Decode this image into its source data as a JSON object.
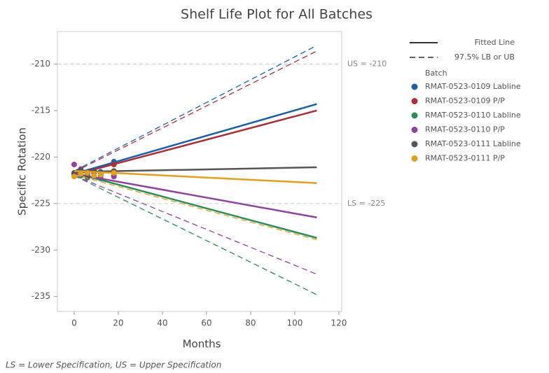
{
  "chart_data": {
    "type": "line",
    "title": "Shelf Life Plot for All Batches",
    "xlabel": "Months",
    "ylabel": "Specific Rotation",
    "xlim": [
      -7.6,
      121.3
    ],
    "ylim": [
      -236.6,
      -206.5
    ],
    "xticks": [
      0,
      20,
      40,
      60,
      80,
      100,
      120
    ],
    "yticks": [
      -210,
      -215,
      -220,
      -225,
      -230,
      -235
    ],
    "reference_lines": [
      {
        "value": -210,
        "label": "US = -210"
      },
      {
        "value": -225,
        "label": "LS = -225"
      }
    ],
    "line_styles": [
      "Fitted Line",
      "97.5% LB or UB"
    ],
    "legend_title": "Batch",
    "x": [
      0,
      110
    ],
    "series": [
      {
        "name": "RMAT-0523-0109 Labline",
        "color": "#1f5fa8",
        "values": [
          -221.8,
          -214.3
        ],
        "bound": [
          -221.5,
          -208.0
        ],
        "points": {
          "x": [
            0,
            3,
            6,
            9,
            12,
            18
          ],
          "y": [
            -221.8,
            -221.5,
            -221.9,
            -221.4,
            -221.6,
            -220.5
          ]
        }
      },
      {
        "name": "RMAT-0523-0109 P/P",
        "color": "#a8303a",
        "values": [
          -221.9,
          -215.0
        ],
        "bound": [
          -221.6,
          -208.6
        ],
        "points": {
          "x": [
            0,
            3,
            6,
            9,
            12,
            18
          ],
          "y": [
            -222.0,
            -221.7,
            -221.8,
            -221.6,
            -221.9,
            -220.8
          ]
        }
      },
      {
        "name": "RMAT-0523-0110 Labline",
        "color": "#2e8b57",
        "values": [
          -221.7,
          -228.7
        ],
        "bound": [
          -222.0,
          -234.8
        ],
        "points": {
          "x": [
            0,
            3,
            6,
            9,
            12,
            18
          ],
          "y": [
            -221.9,
            -222.0,
            -221.8,
            -222.1,
            -222.3,
            -222.0
          ]
        }
      },
      {
        "name": "RMAT-0523-0110 P/P",
        "color": "#8e44a0",
        "values": [
          -221.8,
          -226.5
        ],
        "bound": [
          -222.0,
          -232.6
        ],
        "points": {
          "x": [
            0,
            3,
            6,
            9,
            12,
            18
          ],
          "y": [
            -220.8,
            -221.3,
            -221.9,
            -221.7,
            -222.0,
            -222.1
          ]
        }
      },
      {
        "name": "RMAT-0523-0111 Labline",
        "color": "#555555",
        "values": [
          -221.6,
          -221.1
        ],
        "points": {
          "x": [
            0,
            3,
            6,
            9,
            12,
            18
          ],
          "y": [
            -221.7,
            -221.4,
            -222.2,
            -221.6,
            -221.8,
            -221.5
          ]
        }
      },
      {
        "name": "RMAT-0523-0111 P/P",
        "color": "#e0a020",
        "values": [
          -221.5,
          -222.8
        ],
        "bound": [
          -221.9,
          -228.9
        ],
        "points": {
          "x": [
            0,
            3,
            6,
            9,
            12,
            18
          ],
          "y": [
            -222.1,
            -221.8,
            -221.7,
            -222.0,
            -221.9,
            -221.7
          ]
        }
      }
    ],
    "footnote": "LS = Lower Specification, US = Upper Specification"
  }
}
